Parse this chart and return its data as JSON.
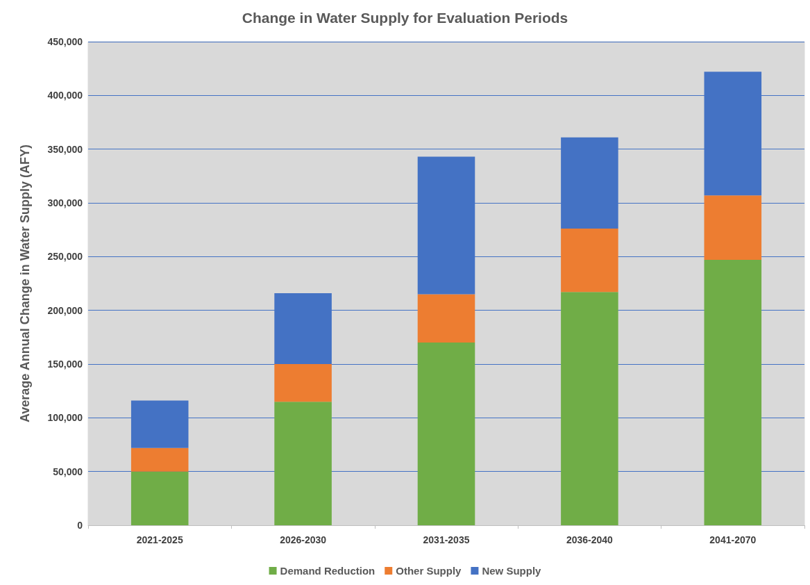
{
  "chart_data": {
    "type": "bar",
    "title": "Change in Water Supply for Evaluation Periods",
    "ylabel": "Average Annual Change in Water Supply (AFY)",
    "categories": [
      "2021-2025",
      "2026-2030",
      "2031-2035",
      "2036-2040",
      "2041-2070"
    ],
    "stacked": true,
    "series": [
      {
        "name": "Demand Reduction",
        "color": "#70ad47",
        "values": [
          50000,
          115000,
          170000,
          217000,
          247000
        ]
      },
      {
        "name": "Other Supply",
        "color": "#ed7d31",
        "values": [
          22000,
          35000,
          45000,
          59000,
          60000
        ]
      },
      {
        "name": "New Supply",
        "color": "#4472c4",
        "values": [
          44000,
          66000,
          128000,
          85000,
          115000
        ]
      }
    ],
    "ylim": [
      0,
      450000
    ],
    "yticks": [
      0,
      {
        "value": 50000,
        "label": "50,000"
      },
      {
        "value": 100000,
        "label": "100,000"
      },
      {
        "value": 150000,
        "label": "150,000"
      },
      {
        "value": 200000,
        "label": "200,000"
      },
      {
        "value": 250000,
        "label": "250,000"
      },
      {
        "value": 300000,
        "label": "300,000"
      },
      {
        "value": 350000,
        "label": "350,000"
      },
      {
        "value": 400000,
        "label": "400,000"
      },
      {
        "value": 450000,
        "label": "450,000"
      }
    ],
    "grid": "y",
    "legend": "bottom"
  }
}
